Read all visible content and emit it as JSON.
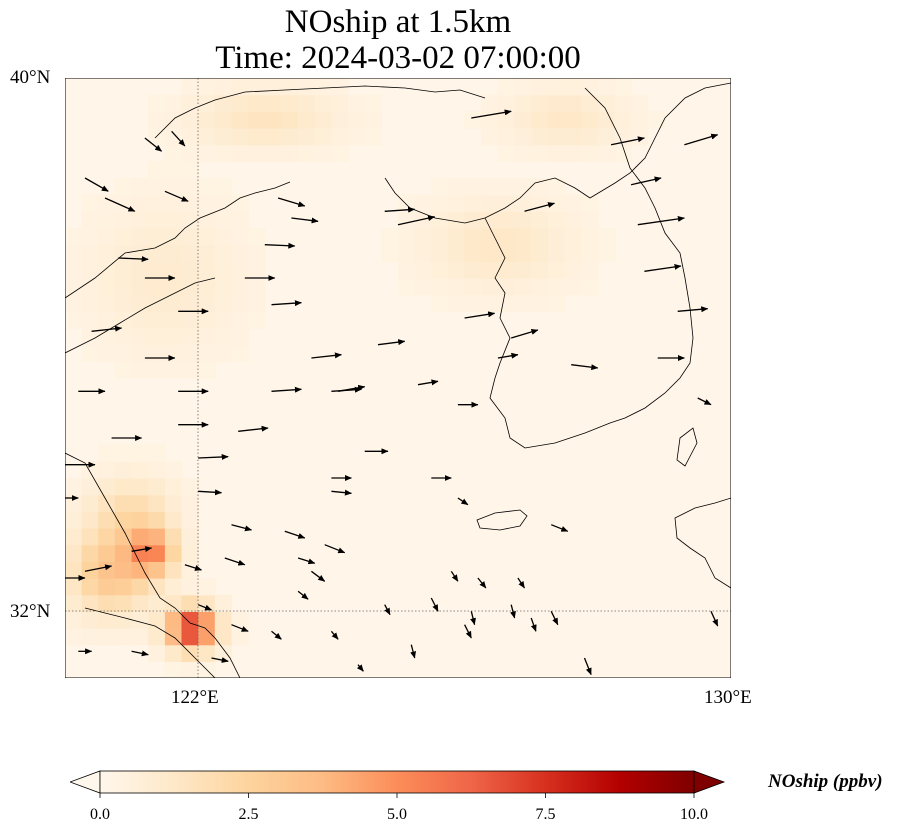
{
  "title_line1": "NOship at 1.5km",
  "title_line2": "Time: 2024-03-02 07:00:00",
  "lat_ticks": [
    "40°N",
    "32°N"
  ],
  "lon_ticks": [
    "122°E",
    "130°E"
  ],
  "colorbar": {
    "label": "NOship (ppbv)",
    "ticks": [
      "0.0",
      "2.5",
      "5.0",
      "7.5",
      "10.0"
    ],
    "range": [
      0,
      10
    ],
    "colormap": [
      "#fff7ec",
      "#fee8c8",
      "#fdd49e",
      "#fdbb84",
      "#fc8d59",
      "#ef6548",
      "#d7301f",
      "#b30000",
      "#7f0000"
    ]
  },
  "map": {
    "lon_range": [
      120,
      130
    ],
    "lat_range": [
      31,
      40
    ],
    "gridlines": {
      "lon": 122,
      "lat": 32,
      "style": "dotted"
    }
  },
  "chart_data": {
    "type": "heatmap",
    "title": "NOship at 1.5km Time: 2024-03-02 07:00:00",
    "variable": "NOship",
    "units": "ppbv",
    "xlabel": "",
    "ylabel": "",
    "xlim": [
      120,
      130
    ],
    "ylim": [
      31,
      40
    ],
    "grid": true,
    "legend": "colorbar bottom",
    "background_level": 0.3,
    "plumes": [
      {
        "lon": 121.9,
        "lat": 31.75,
        "value": 7.5,
        "spread_lon": 0.35,
        "spread_lat": 0.3
      },
      {
        "lon": 121.3,
        "lat": 32.9,
        "value": 4.2,
        "spread_lon": 0.35,
        "spread_lat": 0.35
      },
      {
        "lon": 120.7,
        "lat": 32.6,
        "value": 3.0,
        "spread_lon": 0.6,
        "spread_lat": 0.6
      },
      {
        "lon": 121.0,
        "lat": 33.5,
        "value": 1.6,
        "spread_lon": 0.6,
        "spread_lat": 0.5
      },
      {
        "lon": 123.0,
        "lat": 39.4,
        "value": 1.2,
        "spread_lon": 1.0,
        "spread_lat": 0.4
      },
      {
        "lon": 126.5,
        "lat": 37.5,
        "value": 1.0,
        "spread_lon": 1.0,
        "spread_lat": 0.6
      },
      {
        "lon": 127.5,
        "lat": 39.4,
        "value": 1.0,
        "spread_lon": 0.8,
        "spread_lat": 0.4
      },
      {
        "lon": 121.5,
        "lat": 37.0,
        "value": 0.7,
        "spread_lon": 1.0,
        "spread_lat": 1.0
      }
    ],
    "wind_arrows": [
      [
        121.6,
        39.2,
        0.2,
        -0.22
      ],
      [
        120.3,
        38.5,
        0.35,
        -0.2
      ],
      [
        120.6,
        38.2,
        0.45,
        -0.2
      ],
      [
        121.5,
        38.3,
        0.35,
        -0.15
      ],
      [
        121.2,
        39.1,
        0.25,
        -0.2
      ],
      [
        123.2,
        38.2,
        0.4,
        -0.12
      ],
      [
        123.4,
        37.9,
        0.4,
        -0.05
      ],
      [
        123.0,
        37.5,
        0.45,
        -0.02
      ],
      [
        122.7,
        37.0,
        0.45,
        0.0
      ],
      [
        123.1,
        36.6,
        0.45,
        0.03
      ],
      [
        124.8,
        38.0,
        0.45,
        0.03
      ],
      [
        125.0,
        37.8,
        0.55,
        0.12
      ],
      [
        126.1,
        39.4,
        0.6,
        0.1
      ],
      [
        126.9,
        38.0,
        0.45,
        0.12
      ],
      [
        128.2,
        39.0,
        0.5,
        0.1
      ],
      [
        129.3,
        39.0,
        0.5,
        0.15
      ],
      [
        128.5,
        38.4,
        0.45,
        0.1
      ],
      [
        128.6,
        37.8,
        0.7,
        0.1
      ],
      [
        128.7,
        37.1,
        0.55,
        0.08
      ],
      [
        129.2,
        36.5,
        0.45,
        0.04
      ],
      [
        128.9,
        35.8,
        0.4,
        0.0
      ],
      [
        129.5,
        35.2,
        0.2,
        -0.1
      ],
      [
        120.8,
        37.3,
        0.45,
        -0.02
      ],
      [
        121.2,
        37.0,
        0.45,
        0.0
      ],
      [
        121.7,
        36.5,
        0.45,
        0.0
      ],
      [
        123.7,
        35.8,
        0.45,
        0.05
      ],
      [
        124.7,
        36.0,
        0.4,
        0.05
      ],
      [
        126.0,
        36.4,
        0.45,
        0.07
      ],
      [
        126.7,
        36.1,
        0.4,
        0.12
      ],
      [
        124.1,
        35.3,
        0.4,
        0.07
      ],
      [
        126.5,
        35.8,
        0.3,
        0.05
      ],
      [
        127.6,
        35.7,
        0.4,
        -0.05
      ],
      [
        120.4,
        36.2,
        0.45,
        0.05
      ],
      [
        121.2,
        35.8,
        0.45,
        0.0
      ],
      [
        121.7,
        35.3,
        0.45,
        0.0
      ],
      [
        123.1,
        35.3,
        0.45,
        0.03
      ],
      [
        124.0,
        35.3,
        0.45,
        0.03
      ],
      [
        125.3,
        35.4,
        0.3,
        0.05
      ],
      [
        125.9,
        35.1,
        0.3,
        0.0
      ],
      [
        121.7,
        34.8,
        0.45,
        0.0
      ],
      [
        122.6,
        34.7,
        0.45,
        0.05
      ],
      [
        122.0,
        34.3,
        0.45,
        0.02
      ],
      [
        120.2,
        35.3,
        0.4,
        0.0
      ],
      [
        124.5,
        34.4,
        0.35,
        0.0
      ],
      [
        125.5,
        34.0,
        0.3,
        0.0
      ],
      [
        120.7,
        34.6,
        0.45,
        0.0
      ],
      [
        120.0,
        34.2,
        0.45,
        0.0
      ],
      [
        124.0,
        34.0,
        0.3,
        0.0
      ],
      [
        124.0,
        33.8,
        0.3,
        -0.03
      ],
      [
        122.0,
        33.8,
        0.35,
        -0.02
      ],
      [
        122.5,
        33.3,
        0.3,
        -0.08
      ],
      [
        123.3,
        33.2,
        0.3,
        -0.1
      ],
      [
        123.9,
        33.0,
        0.3,
        -0.12
      ],
      [
        125.9,
        33.7,
        0.15,
        -0.1
      ],
      [
        127.3,
        33.3,
        0.25,
        -0.1
      ],
      [
        120.0,
        33.7,
        0.2,
        0.0
      ],
      [
        121.0,
        32.9,
        0.3,
        0.05
      ],
      [
        121.8,
        32.7,
        0.25,
        -0.08
      ],
      [
        122.4,
        32.8,
        0.3,
        -0.1
      ],
      [
        123.5,
        32.8,
        0.25,
        -0.08
      ],
      [
        123.7,
        32.6,
        0.2,
        -0.15
      ],
      [
        125.8,
        32.6,
        0.1,
        -0.15
      ],
      [
        126.2,
        32.5,
        0.12,
        -0.15
      ],
      [
        126.8,
        32.5,
        0.1,
        -0.15
      ],
      [
        120.0,
        32.5,
        0.3,
        0.0
      ],
      [
        120.3,
        32.6,
        0.4,
        0.08
      ],
      [
        122.0,
        32.1,
        0.2,
        -0.08
      ],
      [
        123.5,
        32.3,
        0.15,
        -0.12
      ],
      [
        124.8,
        32.1,
        0.08,
        -0.15
      ],
      [
        125.5,
        32.2,
        0.1,
        -0.2
      ],
      [
        126.0,
        31.8,
        0.1,
        -0.2
      ],
      [
        126.1,
        32.0,
        0.05,
        -0.2
      ],
      [
        126.7,
        32.1,
        0.05,
        -0.2
      ],
      [
        127.0,
        31.9,
        0.07,
        -0.2
      ],
      [
        127.3,
        32.0,
        0.1,
        -0.2
      ],
      [
        122.5,
        31.8,
        0.25,
        -0.1
      ],
      [
        123.1,
        31.7,
        0.15,
        -0.12
      ],
      [
        124.0,
        31.7,
        0.1,
        -0.12
      ],
      [
        125.2,
        31.5,
        0.05,
        -0.2
      ],
      [
        127.8,
        31.3,
        0.1,
        -0.25
      ],
      [
        129.7,
        32.0,
        0.1,
        -0.22
      ],
      [
        121.0,
        31.4,
        0.25,
        -0.05
      ],
      [
        122.2,
        31.3,
        0.25,
        -0.05
      ],
      [
        120.2,
        31.4,
        0.2,
        0.0
      ],
      [
        124.4,
        31.2,
        0.08,
        -0.1
      ]
    ]
  }
}
